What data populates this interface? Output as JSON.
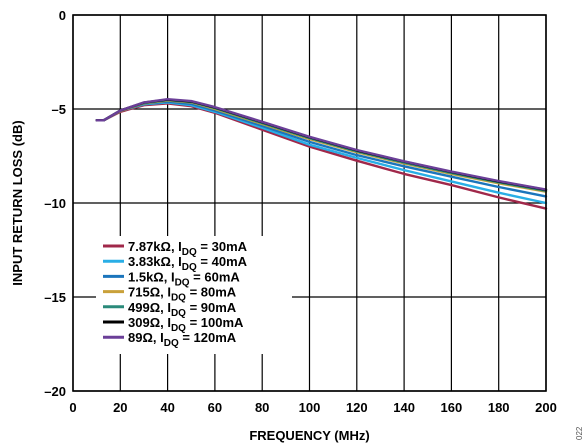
{
  "chart_data": {
    "type": "line",
    "xlabel": "FREQUENCY (MHz)",
    "ylabel": "INPUT RETURN LOSS (dB)",
    "xlim": [
      0,
      200
    ],
    "ylim": [
      -20,
      0
    ],
    "xticks": [
      0,
      20,
      40,
      60,
      80,
      100,
      120,
      140,
      160,
      180,
      200
    ],
    "yticks": [
      0,
      -5,
      -10,
      -15,
      -20
    ],
    "ytick_labels": [
      "0",
      "–5",
      "–10",
      "–15",
      "–20"
    ],
    "grid": true,
    "legend_position": "lower-left",
    "figure_id": "022",
    "x": [
      10,
      13,
      20,
      30,
      40,
      50,
      60,
      80,
      100,
      120,
      140,
      160,
      180,
      200
    ],
    "series": [
      {
        "label_main": "7.87kΩ, I",
        "label_sub": "DQ",
        "label_tail": " = 30mA",
        "color": "#a0284a",
        "values": [
          -5.6,
          -5.6,
          -5.15,
          -4.8,
          -4.7,
          -4.85,
          -5.2,
          -6.1,
          -7.0,
          -7.75,
          -8.45,
          -9.05,
          -9.7,
          -10.3
        ]
      },
      {
        "label_main": "3.83kΩ, I",
        "label_sub": "DQ",
        "label_tail": " = 40mA",
        "color": "#29aee6",
        "values": [
          -5.6,
          -5.6,
          -5.1,
          -4.75,
          -4.65,
          -4.8,
          -5.15,
          -6.0,
          -6.9,
          -7.6,
          -8.25,
          -8.85,
          -9.45,
          -10.0
        ]
      },
      {
        "label_main": "1.5kΩ, I",
        "label_sub": "DQ",
        "label_tail": " = 60mA",
        "color": "#1b75bc",
        "values": [
          -5.6,
          -5.6,
          -5.1,
          -4.72,
          -4.6,
          -4.73,
          -5.08,
          -5.9,
          -6.75,
          -7.45,
          -8.05,
          -8.6,
          -9.15,
          -9.65
        ]
      },
      {
        "label_main": "715Ω, I",
        "label_sub": "DQ",
        "label_tail": " = 80mA",
        "color": "#c9a13a",
        "values": [
          -5.6,
          -5.6,
          -5.1,
          -4.7,
          -4.55,
          -4.65,
          -5.0,
          -5.8,
          -6.6,
          -7.3,
          -7.9,
          -8.45,
          -8.95,
          -9.4
        ]
      },
      {
        "label_main": "499Ω, I",
        "label_sub": "DQ",
        "label_tail": " = 90mA",
        "color": "#2a8a7a",
        "values": [
          -5.6,
          -5.6,
          -5.08,
          -4.68,
          -4.52,
          -4.62,
          -4.95,
          -5.75,
          -6.55,
          -7.25,
          -7.85,
          -8.4,
          -8.9,
          -9.35
        ]
      },
      {
        "label_main": "309Ω, I",
        "label_sub": "DQ",
        "label_tail": " = 100mA",
        "color": "#000000",
        "values": [
          -5.6,
          -5.6,
          -5.08,
          -4.66,
          -4.5,
          -4.6,
          -4.92,
          -5.7,
          -6.5,
          -7.2,
          -7.8,
          -8.35,
          -8.85,
          -9.3
        ]
      },
      {
        "label_main": "89Ω, I",
        "label_sub": "DQ",
        "label_tail": " = 120mA",
        "color": "#6b3f98",
        "values": [
          -5.6,
          -5.6,
          -5.08,
          -4.65,
          -4.48,
          -4.58,
          -4.9,
          -5.68,
          -6.48,
          -7.18,
          -7.78,
          -8.33,
          -8.83,
          -9.28
        ]
      }
    ]
  }
}
